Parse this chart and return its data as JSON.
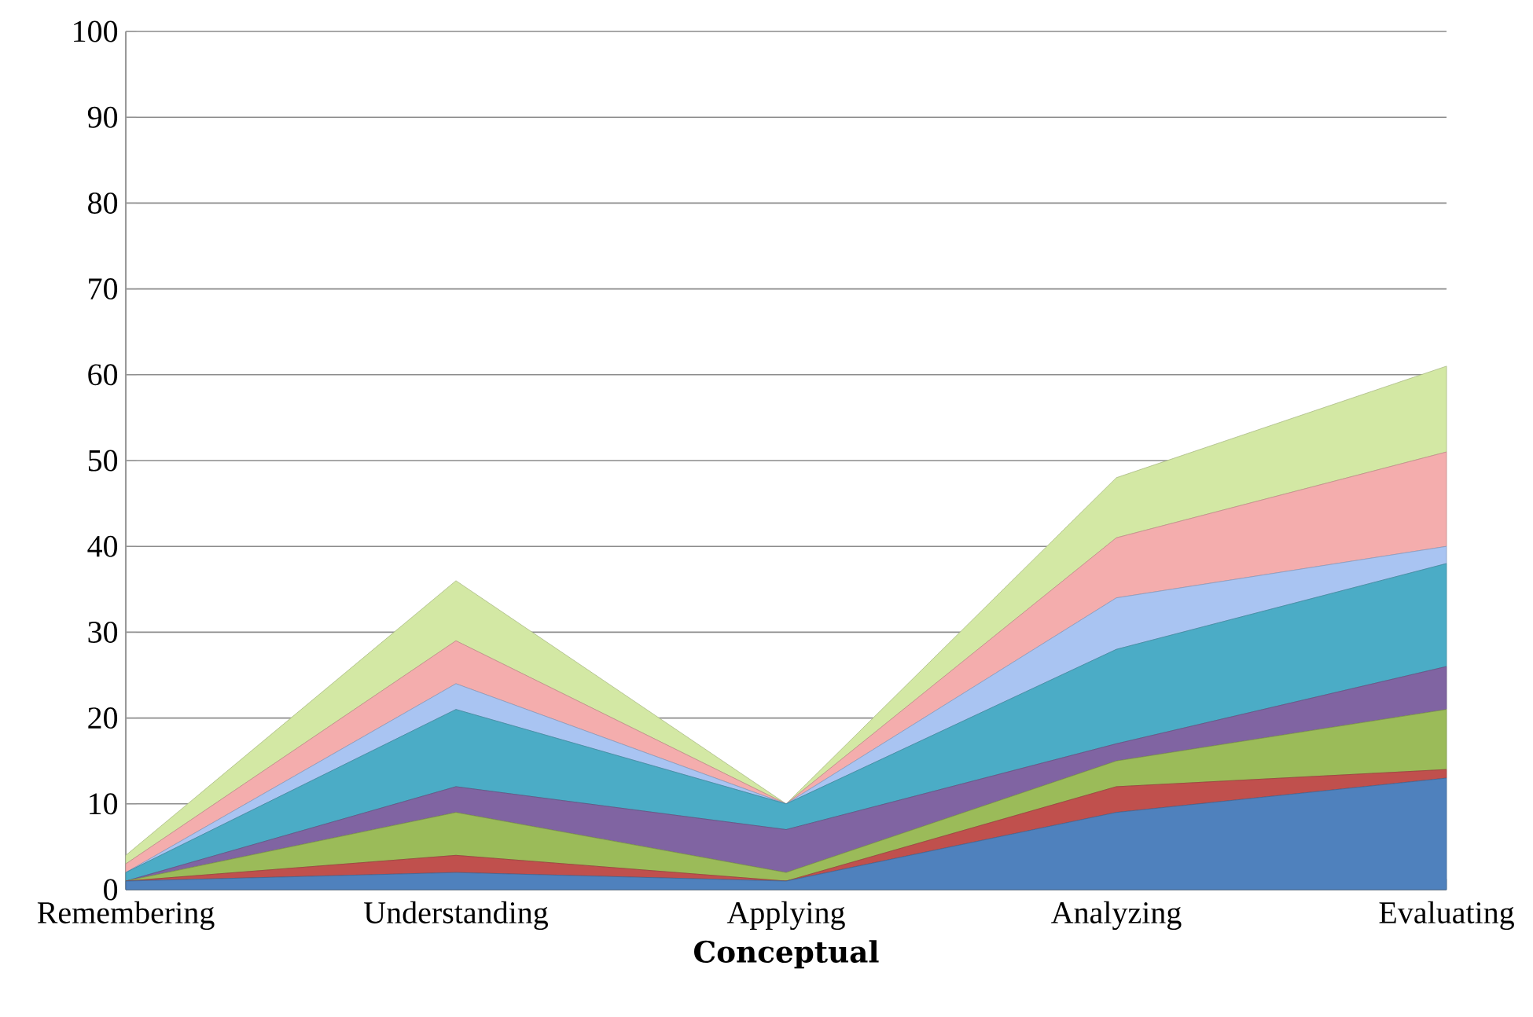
{
  "chart_data": {
    "type": "area",
    "stacked": true,
    "xlabel": "Conceptual",
    "categories": [
      "Remembering",
      "Understanding",
      "Applying",
      "Analyzing",
      "Evaluating"
    ],
    "series": [
      {
        "color": "#4f81bd",
        "values": [
          1,
          2,
          1,
          9,
          13
        ]
      },
      {
        "color": "#c0504d",
        "values": [
          0,
          2,
          0,
          3,
          1
        ]
      },
      {
        "color": "#9bbb59",
        "values": [
          0,
          5,
          1,
          3,
          7
        ]
      },
      {
        "color": "#8064a2",
        "values": [
          0,
          3,
          5,
          2,
          5
        ]
      },
      {
        "color": "#4bacc6",
        "values": [
          1,
          9,
          3,
          11,
          12
        ]
      },
      {
        "color": "#a9c4f2",
        "values": [
          0,
          3,
          0,
          6,
          2
        ]
      },
      {
        "color": "#f4adad",
        "values": [
          1,
          5,
          0,
          7,
          11
        ]
      },
      {
        "color": "#d3e8a4",
        "values": [
          1,
          7,
          0,
          7,
          10
        ]
      }
    ],
    "ylim": [
      0,
      100
    ],
    "yticks": [
      0,
      10,
      20,
      30,
      40,
      50,
      60,
      70,
      80,
      90,
      100
    ],
    "grid": "y"
  }
}
